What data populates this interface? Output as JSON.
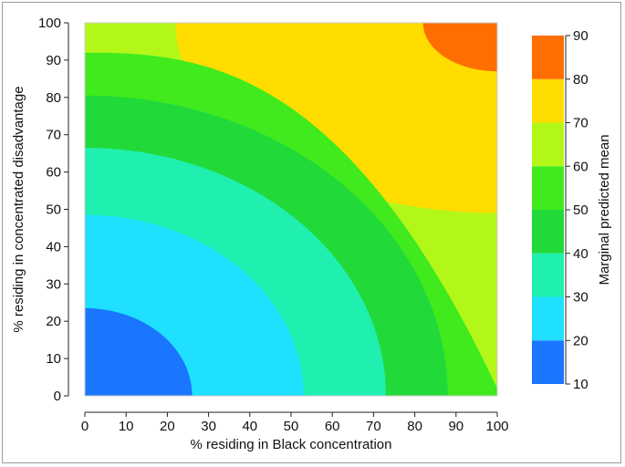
{
  "chart_data": {
    "type": "heatmap",
    "subtype": "contour",
    "title": "",
    "xlabel": "% residing in Black concentration",
    "ylabel": "% residing in concentrated disadvantage",
    "xlim": [
      0,
      100
    ],
    "ylim": [
      0,
      100
    ],
    "x_ticks": [
      0,
      10,
      20,
      30,
      40,
      50,
      60,
      70,
      80,
      90,
      100
    ],
    "y_ticks": [
      0,
      10,
      20,
      30,
      40,
      50,
      60,
      70,
      80,
      90,
      100
    ],
    "grid": false,
    "colorbar": {
      "label": "Marginal predicted mean",
      "ticks": [
        10,
        20,
        30,
        40,
        50,
        60,
        70,
        80,
        90
      ],
      "bands": [
        {
          "from": 10,
          "to": 20,
          "color": "#1a75ff"
        },
        {
          "from": 20,
          "to": 30,
          "color": "#1fe0ff"
        },
        {
          "from": 30,
          "to": 40,
          "color": "#1ff0b0"
        },
        {
          "from": 40,
          "to": 50,
          "color": "#22d93a"
        },
        {
          "from": 50,
          "to": 60,
          "color": "#40ea1d"
        },
        {
          "from": 60,
          "to": 70,
          "color": "#b3f719"
        },
        {
          "from": 70,
          "to": 80,
          "color": "#ffdd00"
        },
        {
          "from": 80,
          "to": 90,
          "color": "#ff6e00"
        }
      ]
    },
    "contours": [
      {
        "level": 20,
        "x_intercept": 26,
        "y_intercept": 23.5
      },
      {
        "level": 30,
        "x_intercept": 53,
        "y_intercept": 48.5
      },
      {
        "level": 40,
        "x_intercept": 73,
        "y_intercept": 66.5
      },
      {
        "level": 50,
        "x_intercept": 88,
        "y_intercept": 80.5
      },
      {
        "level": 60,
        "x_intercept": 100,
        "y_intercept": 92,
        "y_at_x_max": 2
      },
      {
        "level": 70,
        "x_intercept": 100,
        "y_intercept": 100,
        "y_at_x_max": 49,
        "x_at_y_max": 22
      },
      {
        "level": 80,
        "x_intercept": 100,
        "y_intercept": 100,
        "y_at_x_max": 87,
        "x_at_y_max": 82
      }
    ]
  }
}
